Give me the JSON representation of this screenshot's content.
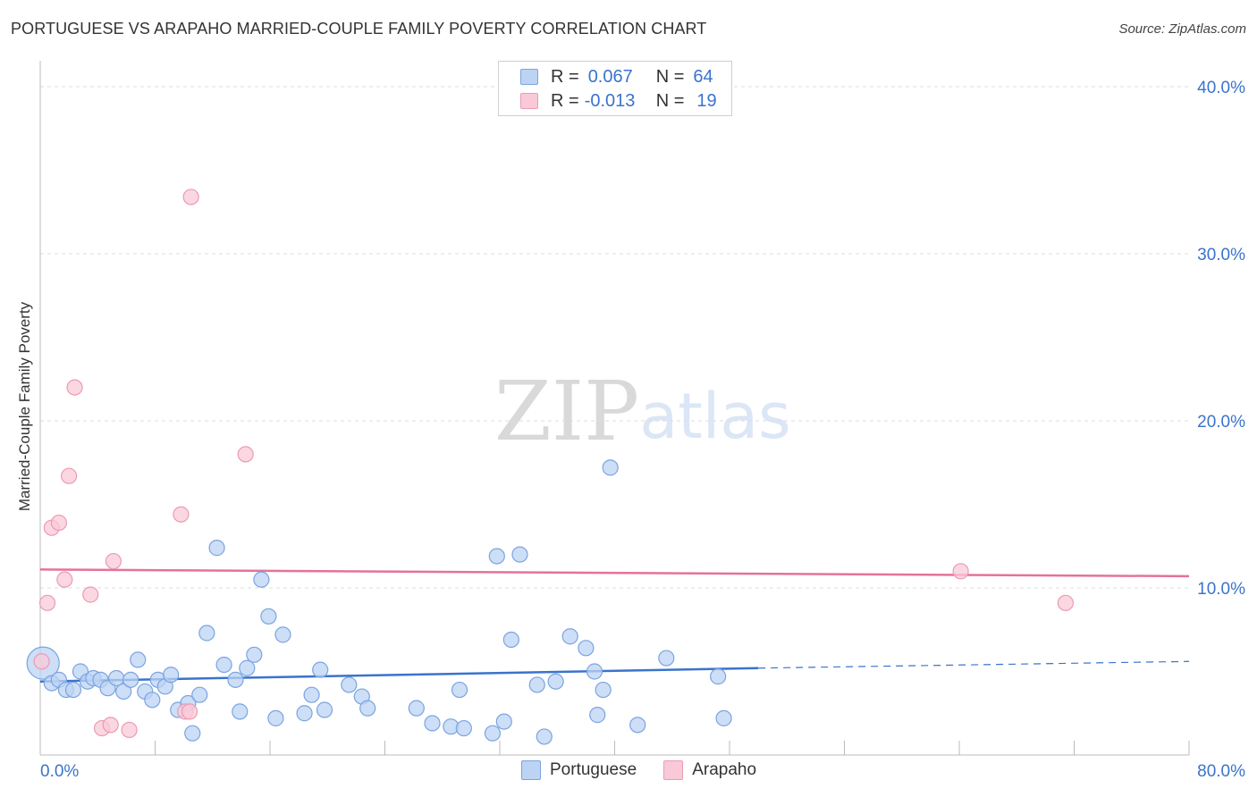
{
  "title": "PORTUGUESE VS ARAPAHO MARRIED-COUPLE FAMILY POVERTY CORRELATION CHART",
  "source": "Source: ZipAtlas.com",
  "watermark": {
    "zip": "ZIP",
    "atlas": "atlas"
  },
  "legend": {
    "portuguese": {
      "r_label": "R =",
      "r_value": "0.067",
      "n_label": "N =",
      "n_value": "64"
    },
    "arapaho": {
      "r_label": "R =",
      "r_value": "-0.013",
      "n_label": "N =",
      "n_value": "19"
    }
  },
  "bottom_legend": [
    "Portuguese",
    "Arapaho"
  ],
  "colors": {
    "blue": "#3a73cc",
    "blue_fill": "#bcd3f4",
    "blue_stroke": "#7aa4e0",
    "pink": "#e4729a",
    "pink_fill": "#f9c9d7",
    "pink_stroke": "#ec9ab4",
    "grid": "#dddddd",
    "axis_text": "#3a73cc"
  },
  "chart_data": {
    "type": "scatter",
    "title": "PORTUGUESE VS ARAPAHO MARRIED-COUPLE FAMILY POVERTY CORRELATION CHART",
    "xlabel": "",
    "ylabel": "Married-Couple Family Poverty",
    "xlim": [
      0,
      80
    ],
    "ylim": [
      0,
      40
    ],
    "x_tick_labels": [
      "0.0%",
      "80.0%"
    ],
    "y_ticks": [
      10,
      20,
      30,
      40
    ],
    "y_tick_labels": [
      "10.0%",
      "20.0%",
      "30.0%",
      "40.0%"
    ],
    "series": [
      {
        "name": "Portuguese",
        "points": [
          [
            0.2,
            5.5
          ],
          [
            0.8,
            4.3
          ],
          [
            1.3,
            4.5
          ],
          [
            1.8,
            3.9
          ],
          [
            2.3,
            3.9
          ],
          [
            2.8,
            5.0
          ],
          [
            3.3,
            4.4
          ],
          [
            3.7,
            4.6
          ],
          [
            4.2,
            4.5
          ],
          [
            4.7,
            4.0
          ],
          [
            5.3,
            4.6
          ],
          [
            5.8,
            3.8
          ],
          [
            6.3,
            4.5
          ],
          [
            6.8,
            5.7
          ],
          [
            7.3,
            3.8
          ],
          [
            7.8,
            3.3
          ],
          [
            8.2,
            4.5
          ],
          [
            8.7,
            4.1
          ],
          [
            9.1,
            4.8
          ],
          [
            9.6,
            2.7
          ],
          [
            10.3,
            3.1
          ],
          [
            10.6,
            1.3
          ],
          [
            11.1,
            3.6
          ],
          [
            11.6,
            7.3
          ],
          [
            12.3,
            12.4
          ],
          [
            12.8,
            5.4
          ],
          [
            13.6,
            4.5
          ],
          [
            13.9,
            2.6
          ],
          [
            14.4,
            5.2
          ],
          [
            14.9,
            6.0
          ],
          [
            15.4,
            10.5
          ],
          [
            15.9,
            8.3
          ],
          [
            16.4,
            2.2
          ],
          [
            16.9,
            7.2
          ],
          [
            18.4,
            2.5
          ],
          [
            18.9,
            3.6
          ],
          [
            19.5,
            5.1
          ],
          [
            19.8,
            2.7
          ],
          [
            21.5,
            4.2
          ],
          [
            22.4,
            3.5
          ],
          [
            22.8,
            2.8
          ],
          [
            26.2,
            2.8
          ],
          [
            27.3,
            1.9
          ],
          [
            28.6,
            1.7
          ],
          [
            29.2,
            3.9
          ],
          [
            29.5,
            1.6
          ],
          [
            31.5,
            1.3
          ],
          [
            31.8,
            11.9
          ],
          [
            32.3,
            2.0
          ],
          [
            32.8,
            6.9
          ],
          [
            33.4,
            12.0
          ],
          [
            34.6,
            4.2
          ],
          [
            35.1,
            1.1
          ],
          [
            35.9,
            4.4
          ],
          [
            36.9,
            7.1
          ],
          [
            38.0,
            6.4
          ],
          [
            38.6,
            5.0
          ],
          [
            38.8,
            2.4
          ],
          [
            39.2,
            3.9
          ],
          [
            39.7,
            17.2
          ],
          [
            41.6,
            1.8
          ],
          [
            43.6,
            5.8
          ],
          [
            47.2,
            4.7
          ],
          [
            47.6,
            2.2
          ]
        ],
        "trend": {
          "x": [
            0,
            50
          ],
          "y": [
            4.4,
            5.2
          ],
          "dashed_extension": {
            "x": [
              50,
              80
            ],
            "y": [
              5.2,
              5.6
            ]
          }
        }
      },
      {
        "name": "Arapaho",
        "points": [
          [
            0.1,
            5.6
          ],
          [
            0.5,
            9.1
          ],
          [
            0.8,
            13.6
          ],
          [
            1.3,
            13.9
          ],
          [
            1.7,
            10.5
          ],
          [
            2.0,
            16.7
          ],
          [
            2.4,
            22.0
          ],
          [
            3.5,
            9.6
          ],
          [
            4.3,
            1.6
          ],
          [
            4.9,
            1.8
          ],
          [
            5.1,
            11.6
          ],
          [
            6.2,
            1.5
          ],
          [
            9.8,
            14.4
          ],
          [
            10.1,
            2.6
          ],
          [
            10.4,
            2.6
          ],
          [
            10.5,
            33.4
          ],
          [
            14.3,
            18.0
          ],
          [
            64.1,
            11.0
          ],
          [
            71.4,
            9.1
          ]
        ],
        "trend": {
          "x": [
            0,
            80
          ],
          "y": [
            11.1,
            10.7
          ]
        }
      }
    ]
  }
}
